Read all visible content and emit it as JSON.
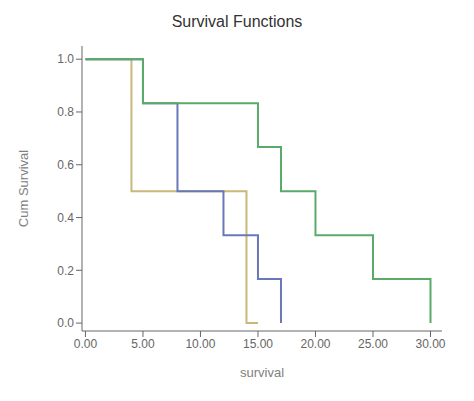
{
  "chart_data": {
    "type": "step",
    "title": "Survival Functions",
    "xlabel": "survival",
    "ylabel": "Cum Survival",
    "xlim": [
      -0.3,
      31.0
    ],
    "ylim": [
      -0.03,
      1.05
    ],
    "xticks": [
      {
        "value": 0,
        "label": "0.00"
      },
      {
        "value": 5,
        "label": "5.00"
      },
      {
        "value": 10,
        "label": "10.00"
      },
      {
        "value": 15,
        "label": "15.00"
      },
      {
        "value": 20,
        "label": "20.00"
      },
      {
        "value": 25,
        "label": "25.00"
      },
      {
        "value": 30,
        "label": "30.00"
      }
    ],
    "yticks": [
      {
        "value": 0,
        "label": "0.0"
      },
      0.2,
      0.4,
      0.6,
      0.8,
      {
        "value": 1,
        "label": "1.0"
      }
    ],
    "series": [
      {
        "color": "#c8b87a",
        "x": [
          0,
          4,
          8,
          14,
          15
        ],
        "values": [
          1.0,
          0.5,
          0.5,
          0.0,
          0.0
        ]
      },
      {
        "color": "#6878b8",
        "x": [
          0,
          5,
          8,
          12,
          15,
          17
        ],
        "values": [
          1.0,
          0.833,
          0.5,
          0.333,
          0.167,
          0.0
        ]
      },
      {
        "color": "#5aaa6a",
        "x": [
          0,
          5,
          10,
          15,
          17,
          20,
          25,
          28,
          30
        ],
        "values": [
          1.0,
          0.833,
          0.833,
          0.667,
          0.5,
          0.333,
          0.167,
          0.167,
          0.0
        ]
      }
    ]
  }
}
